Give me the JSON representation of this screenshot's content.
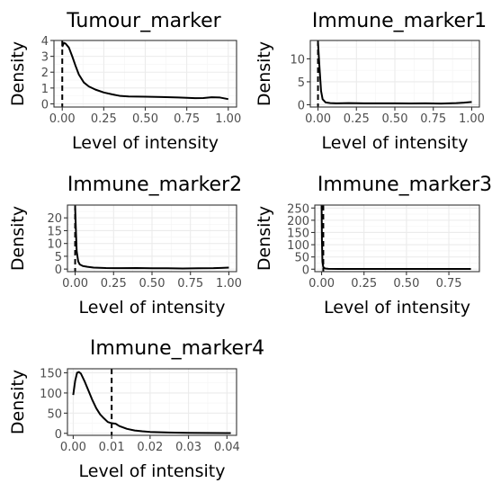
{
  "chart_data": [
    {
      "type": "line",
      "title": "Tumour_marker",
      "xlabel": "Level of intensity",
      "ylabel": "Density",
      "xlim": [
        -0.05,
        1.05
      ],
      "ylim": [
        -0.2,
        4.0
      ],
      "x_ticks": [
        0.0,
        0.25,
        0.5,
        0.75,
        1.0
      ],
      "x_tick_labels": [
        "0.00",
        "0.25",
        "0.50",
        "0.75",
        "1.00"
      ],
      "y_ticks": [
        0,
        1,
        2,
        3,
        4
      ],
      "y_tick_labels": [
        "0",
        "1",
        "2",
        "3",
        "4"
      ],
      "vline": 0.0,
      "x": [
        0.0,
        0.01,
        0.02,
        0.04,
        0.06,
        0.08,
        0.1,
        0.13,
        0.16,
        0.2,
        0.25,
        0.3,
        0.35,
        0.4,
        0.5,
        0.6,
        0.7,
        0.8,
        0.85,
        0.9,
        0.95,
        1.0
      ],
      "y": [
        3.6,
        3.85,
        3.8,
        3.55,
        3.0,
        2.4,
        1.85,
        1.35,
        1.1,
        0.9,
        0.72,
        0.6,
        0.5,
        0.47,
        0.45,
        0.43,
        0.4,
        0.36,
        0.37,
        0.42,
        0.4,
        0.3
      ]
    },
    {
      "type": "line",
      "title": "Immune_marker1",
      "xlabel": "Level of intensity",
      "ylabel": "Density",
      "xlim": [
        -0.05,
        1.05
      ],
      "ylim": [
        -0.5,
        14.0
      ],
      "x_ticks": [
        0.0,
        0.25,
        0.5,
        0.75,
        1.0
      ],
      "x_tick_labels": [
        "0.00",
        "0.25",
        "0.50",
        "0.75",
        "1.00"
      ],
      "y_ticks": [
        0,
        5,
        10
      ],
      "y_tick_labels": [
        "0",
        "5",
        "10"
      ],
      "vline": 0.0,
      "x": [
        0.0,
        0.01,
        0.02,
        0.03,
        0.05,
        0.08,
        0.12,
        0.2,
        0.3,
        0.4,
        0.5,
        0.6,
        0.7,
        0.8,
        0.9,
        0.95,
        1.0
      ],
      "y": [
        13.5,
        8.0,
        3.0,
        1.2,
        0.5,
        0.35,
        0.3,
        0.35,
        0.3,
        0.3,
        0.3,
        0.28,
        0.3,
        0.25,
        0.35,
        0.45,
        0.6
      ]
    },
    {
      "type": "line",
      "title": "Immune_marker2",
      "xlabel": "Level of intensity",
      "ylabel": "Density",
      "xlim": [
        -0.05,
        1.05
      ],
      "ylim": [
        -1.0,
        25.0
      ],
      "x_ticks": [
        0.0,
        0.25,
        0.5,
        0.75,
        1.0
      ],
      "x_tick_labels": [
        "0.00",
        "0.25",
        "0.50",
        "0.75",
        "1.00"
      ],
      "y_ticks": [
        0,
        5,
        10,
        15,
        20
      ],
      "y_tick_labels": [
        "0",
        "5",
        "10",
        "15",
        "20"
      ],
      "vline": 0.0,
      "x": [
        0.0,
        0.005,
        0.01,
        0.02,
        0.03,
        0.05,
        0.08,
        0.12,
        0.2,
        0.3,
        0.4,
        0.5,
        0.6,
        0.7,
        0.8,
        0.9,
        0.95,
        1.0
      ],
      "y": [
        24.0,
        15.0,
        7.0,
        3.0,
        1.8,
        1.2,
        0.9,
        0.6,
        0.4,
        0.35,
        0.4,
        0.3,
        0.3,
        0.25,
        0.3,
        0.35,
        0.45,
        0.6
      ]
    },
    {
      "type": "line",
      "title": "Immune_marker3",
      "xlabel": "Level of intensity",
      "ylabel": "Density",
      "xlim": [
        -0.04,
        0.93
      ],
      "ylim": [
        -10,
        262
      ],
      "x_ticks": [
        0.0,
        0.25,
        0.5,
        0.75
      ],
      "x_tick_labels": [
        "0.00",
        "0.25",
        "0.50",
        "0.75"
      ],
      "y_ticks": [
        0,
        50,
        100,
        150,
        200,
        250
      ],
      "y_tick_labels": [
        "0",
        "50",
        "100",
        "150",
        "200",
        "250"
      ],
      "vline": 0.01,
      "x": [
        0.0,
        0.002,
        0.005,
        0.01,
        0.02,
        0.04,
        0.1,
        0.3,
        0.5,
        0.7,
        0.88
      ],
      "y": [
        260,
        120,
        30,
        8,
        3,
        1.5,
        1,
        1,
        1,
        1,
        1
      ]
    },
    {
      "type": "line",
      "title": "Immune_marker4",
      "xlabel": "Level of intensity",
      "ylabel": "Density",
      "xlim": [
        -0.0015,
        0.0425
      ],
      "ylim": [
        -5,
        160
      ],
      "x_ticks": [
        0.0,
        0.01,
        0.02,
        0.03,
        0.04
      ],
      "x_tick_labels": [
        "0.00",
        "0.01",
        "0.02",
        "0.03",
        "0.04"
      ],
      "y_ticks": [
        0,
        50,
        100,
        150
      ],
      "y_tick_labels": [
        "0",
        "50",
        "100",
        "150"
      ],
      "vline": 0.01,
      "x": [
        0.0,
        0.0005,
        0.001,
        0.0015,
        0.002,
        0.003,
        0.004,
        0.005,
        0.006,
        0.007,
        0.008,
        0.009,
        0.01,
        0.011,
        0.012,
        0.014,
        0.016,
        0.018,
        0.02,
        0.025,
        0.03,
        0.035,
        0.04,
        0.041
      ],
      "y": [
        95,
        130,
        150,
        152,
        148,
        128,
        105,
        82,
        62,
        47,
        37,
        28,
        25,
        24,
        18,
        11,
        7,
        5,
        3.5,
        2,
        1.2,
        0.8,
        0.5,
        0.5
      ]
    }
  ]
}
